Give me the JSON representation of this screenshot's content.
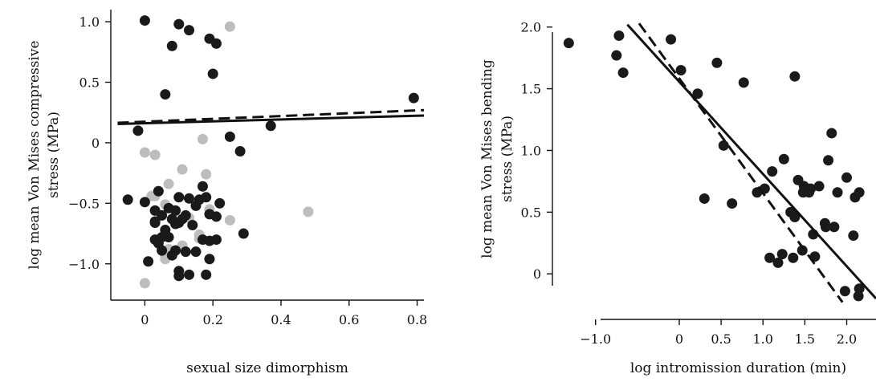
{
  "chart_data": [
    {
      "type": "scatter",
      "xlabel": "sexual size dimorphism",
      "ylabel_line1": "log mean Von Mises compressive",
      "ylabel_line2": "stress (MPa)",
      "xlim": [
        -0.1,
        0.82
      ],
      "ylim": [
        -1.3,
        1.1
      ],
      "xticks": [
        0,
        0.2,
        0.4,
        0.6,
        0.8
      ],
      "xtick_labels": [
        "0",
        "0.2",
        "0.4",
        "0.6",
        "0.8"
      ],
      "yticks": [
        -1.0,
        -0.5,
        0,
        0.5,
        1.0
      ],
      "ytick_labels": [
        "−1.0",
        "−0.5",
        "0",
        "0.5",
        "1.0"
      ],
      "colors": {
        "dark": "#1a1a1a",
        "light": "#bdbdbd"
      },
      "series": [
        {
          "color": "dark",
          "points": [
            [
              0.0,
              1.01
            ],
            [
              0.1,
              0.98
            ],
            [
              0.13,
              0.93
            ],
            [
              0.08,
              0.8
            ],
            [
              0.19,
              0.86
            ],
            [
              0.21,
              0.82
            ],
            [
              0.06,
              0.4
            ],
            [
              0.2,
              0.57
            ],
            [
              -0.02,
              0.1
            ],
            [
              0.25,
              0.05
            ],
            [
              0.37,
              0.14
            ],
            [
              0.28,
              -0.07
            ],
            [
              0.79,
              0.37
            ],
            [
              -0.05,
              -0.47
            ],
            [
              0.0,
              -0.49
            ],
            [
              0.03,
              -0.56
            ],
            [
              0.04,
              -0.4
            ],
            [
              0.07,
              -0.54
            ],
            [
              0.09,
              -0.56
            ],
            [
              0.1,
              -0.45
            ],
            [
              0.13,
              -0.46
            ],
            [
              0.16,
              -0.47
            ],
            [
              0.18,
              -0.45
            ],
            [
              0.15,
              -0.52
            ],
            [
              0.22,
              -0.5
            ],
            [
              0.17,
              -0.36
            ],
            [
              0.05,
              -0.6
            ],
            [
              0.08,
              -0.63
            ],
            [
              0.11,
              -0.63
            ],
            [
              0.14,
              -0.68
            ],
            [
              0.19,
              -0.59
            ],
            [
              0.21,
              -0.61
            ],
            [
              0.29,
              -0.75
            ],
            [
              0.03,
              -0.65
            ],
            [
              0.06,
              -0.72
            ],
            [
              0.07,
              -0.78
            ],
            [
              0.03,
              -0.8
            ],
            [
              0.04,
              -0.83
            ],
            [
              0.05,
              -0.78
            ],
            [
              0.09,
              -0.67
            ],
            [
              0.1,
              -0.66
            ],
            [
              0.12,
              -0.6
            ],
            [
              0.17,
              -0.8
            ],
            [
              0.19,
              -0.81
            ],
            [
              0.21,
              -0.8
            ],
            [
              0.01,
              -0.98
            ],
            [
              0.09,
              -0.89
            ],
            [
              0.12,
              -0.9
            ],
            [
              0.15,
              -0.9
            ],
            [
              0.19,
              -0.96
            ],
            [
              0.1,
              -1.06
            ],
            [
              0.1,
              -1.1
            ],
            [
              0.13,
              -1.09
            ],
            [
              0.18,
              -1.09
            ],
            [
              0.08,
              -0.93
            ],
            [
              0.05,
              -0.89
            ],
            [
              0.03,
              -0.66
            ]
          ]
        },
        {
          "color": "light",
          "points": [
            [
              0.25,
              0.96
            ],
            [
              0.0,
              -0.08
            ],
            [
              0.03,
              -0.1
            ],
            [
              0.17,
              0.03
            ],
            [
              0.11,
              -0.22
            ],
            [
              0.18,
              -0.26
            ],
            [
              0.07,
              -0.34
            ],
            [
              0.02,
              -0.44
            ],
            [
              0.03,
              -0.44
            ],
            [
              0.04,
              -0.4
            ],
            [
              0.06,
              -0.51
            ],
            [
              0.19,
              -0.55
            ],
            [
              0.25,
              -0.64
            ],
            [
              0.48,
              -0.57
            ],
            [
              0.13,
              -0.62
            ],
            [
              0.16,
              -0.76
            ],
            [
              0.16,
              -0.79
            ],
            [
              0.06,
              -0.93
            ],
            [
              0.06,
              -0.96
            ],
            [
              0.11,
              -0.85
            ],
            [
              0.07,
              -0.88
            ],
            [
              0.0,
              -1.16
            ]
          ]
        }
      ],
      "lines": [
        {
          "style": "solid",
          "x": [
            -0.08,
            0.82
          ],
          "y": [
            0.155,
            0.225
          ]
        },
        {
          "style": "dashed",
          "x": [
            -0.08,
            0.82
          ],
          "y": [
            0.165,
            0.27
          ]
        }
      ]
    },
    {
      "type": "scatter",
      "xlabel": "log intromission duration (min)",
      "ylabel_line1": "log mean Von Mises bending",
      "ylabel_line2": "stress (MPa)",
      "xlim": [
        -1.4,
        2.35
      ],
      "ylim": [
        -0.2,
        2.05
      ],
      "xticks": [
        -1.0,
        0,
        0.5,
        1.0,
        1.5,
        2.0
      ],
      "xtick_labels": [
        "−1.0",
        "0",
        "0.5",
        "1.0",
        "1.5",
        "2.0"
      ],
      "yticks": [
        0,
        0.5,
        1.0,
        1.5,
        2.0
      ],
      "ytick_labels": [
        "0",
        "0.5",
        "1.0",
        "1.5",
        "2.0"
      ],
      "colors": {
        "dark": "#1a1a1a",
        "light": "#bdbdbd"
      },
      "series": [
        {
          "color": "dark",
          "points": [
            [
              -1.32,
              1.87
            ],
            [
              -0.72,
              1.93
            ],
            [
              -0.75,
              1.77
            ],
            [
              -0.67,
              1.63
            ],
            [
              -0.1,
              1.9
            ],
            [
              0.02,
              1.65
            ],
            [
              0.22,
              1.46
            ],
            [
              0.45,
              1.71
            ],
            [
              0.77,
              1.55
            ],
            [
              1.38,
              1.6
            ],
            [
              0.53,
              1.04
            ],
            [
              0.3,
              0.61
            ],
            [
              0.63,
              0.57
            ],
            [
              0.93,
              0.66
            ],
            [
              1.02,
              0.69
            ],
            [
              1.11,
              0.83
            ],
            [
              1.25,
              0.93
            ],
            [
              1.38,
              0.46
            ],
            [
              1.33,
              0.5
            ],
            [
              1.42,
              0.76
            ],
            [
              1.49,
              0.71
            ],
            [
              1.48,
              0.66
            ],
            [
              1.55,
              0.66
            ],
            [
              1.57,
              0.69
            ],
            [
              1.67,
              0.71
            ],
            [
              1.78,
              0.92
            ],
            [
              1.82,
              1.14
            ],
            [
              1.89,
              0.66
            ],
            [
              2.0,
              0.78
            ],
            [
              2.1,
              0.62
            ],
            [
              2.15,
              0.66
            ],
            [
              1.6,
              0.32
            ],
            [
              1.74,
              0.41
            ],
            [
              1.75,
              0.38
            ],
            [
              1.85,
              0.38
            ],
            [
              2.08,
              0.31
            ],
            [
              1.08,
              0.13
            ],
            [
              1.18,
              0.09
            ],
            [
              1.23,
              0.16
            ],
            [
              1.36,
              0.13
            ],
            [
              1.47,
              0.19
            ],
            [
              1.62,
              0.14
            ],
            [
              1.98,
              -0.14
            ],
            [
              2.15,
              -0.12
            ],
            [
              2.14,
              -0.18
            ]
          ]
        }
      ],
      "lines": [
        {
          "style": "solid",
          "x": [
            -0.62,
            2.35
          ],
          "y": [
            2.02,
            -0.2
          ]
        },
        {
          "style": "dashed",
          "x": [
            -0.48,
            1.95
          ],
          "y": [
            2.03,
            -0.23
          ]
        }
      ]
    }
  ]
}
